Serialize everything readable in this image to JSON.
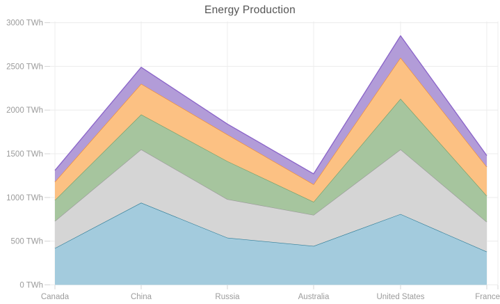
{
  "title": "Energy Production",
  "colors": {
    "background": "#ffffff",
    "grid": "#ececec",
    "tick": "#d4d4d4",
    "axis_label": "#9b9b9b",
    "title": "#545454"
  },
  "chart_data": {
    "type": "area",
    "stacked": true,
    "title": "Energy Production",
    "xlabel": "",
    "ylabel": "TWh",
    "legend": "none",
    "grid": true,
    "ylim": [
      0,
      3000
    ],
    "categories": [
      "Canada",
      "China",
      "Russia",
      "Australia",
      "United States",
      "France"
    ],
    "series": [
      {
        "name": "blue",
        "fill": "#a3cbdd",
        "stroke": "#2e7c96",
        "values": [
          420,
          940,
          540,
          445,
          810,
          380
        ]
      },
      {
        "name": "gray",
        "fill": "#d5d5d5",
        "stroke": "#9b9b9b",
        "values": [
          310,
          610,
          440,
          355,
          740,
          340
        ]
      },
      {
        "name": "green",
        "fill": "#a6c59e",
        "stroke": "#72a06c",
        "values": [
          240,
          400,
          435,
          150,
          580,
          300
        ]
      },
      {
        "name": "orange",
        "fill": "#fcc183",
        "stroke": "#ee8d35",
        "values": [
          210,
          350,
          305,
          200,
          470,
          330
        ]
      },
      {
        "name": "purple",
        "fill": "#b29cd8",
        "stroke": "#8a63c9",
        "values": [
          130,
          190,
          120,
          120,
          250,
          130
        ]
      }
    ],
    "stacked_totals": [
      1310,
      2490,
      1840,
      1270,
      2850,
      1480
    ],
    "yticks": [
      {
        "value": 0,
        "label": "0 TWh"
      },
      {
        "value": 500,
        "label": "500 TWh"
      },
      {
        "value": 1000,
        "label": "1000 TWh"
      },
      {
        "value": 1500,
        "label": "1500 TWh"
      },
      {
        "value": 2000,
        "label": "2000 TWh"
      },
      {
        "value": 2500,
        "label": "2500 TWh"
      },
      {
        "value": 3000,
        "label": "3000 TWh"
      }
    ]
  }
}
